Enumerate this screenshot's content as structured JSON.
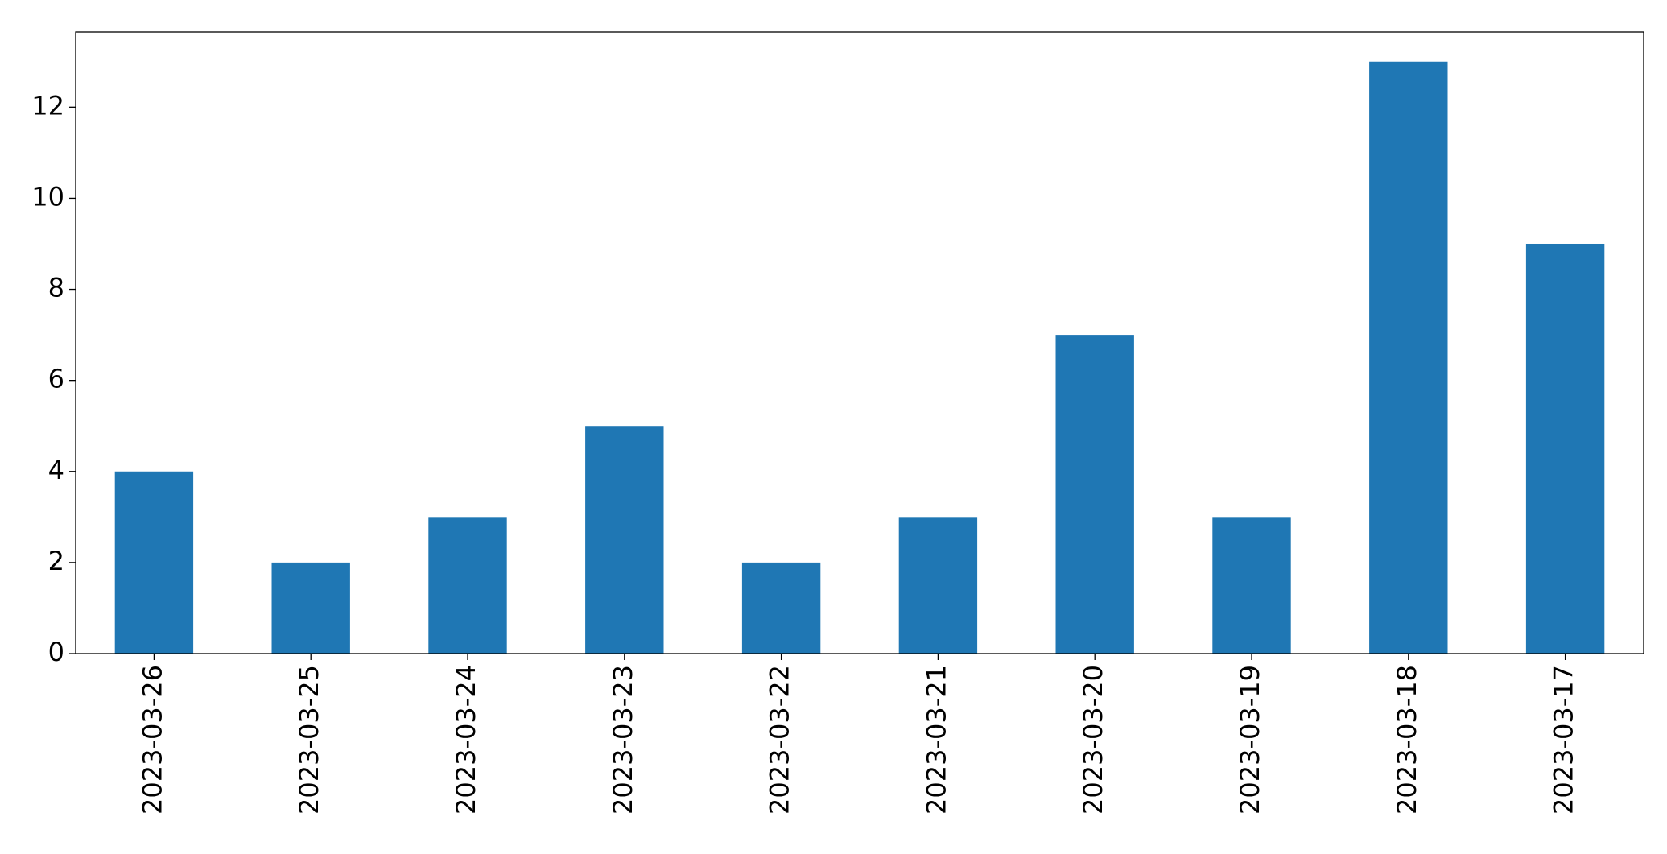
{
  "chart_data": {
    "type": "bar",
    "categories": [
      "2023-03-26",
      "2023-03-25",
      "2023-03-24",
      "2023-03-23",
      "2023-03-22",
      "2023-03-21",
      "2023-03-20",
      "2023-03-19",
      "2023-03-18",
      "2023-03-17"
    ],
    "values": [
      4,
      2,
      3,
      5,
      2,
      3,
      7,
      3,
      13,
      9
    ],
    "color": "#1f77b4",
    "ylim": [
      0,
      13.65
    ],
    "yticks": [
      0,
      2,
      4,
      6,
      8,
      10,
      12
    ],
    "grid": false
  }
}
